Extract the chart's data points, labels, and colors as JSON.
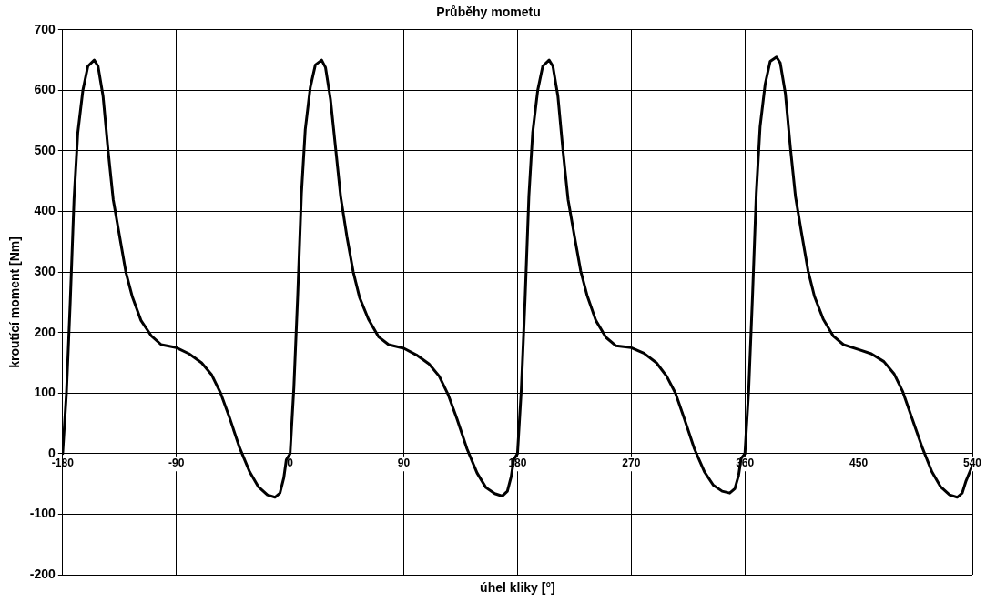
{
  "chart_data": {
    "type": "line",
    "title": "Průběhy mometu",
    "xlabel": "úhel kliky [°]",
    "ylabel": "kroutící moment [Nm]",
    "xlim": [
      -180,
      540
    ],
    "xticks": [
      -180,
      -90,
      0,
      90,
      180,
      270,
      360,
      450,
      540
    ],
    "ylim": [
      -200,
      700
    ],
    "yticks": [
      -200,
      -100,
      0,
      100,
      200,
      300,
      400,
      500,
      600,
      700
    ],
    "grid": true,
    "legend": false,
    "marker": "none",
    "line_style": "solid",
    "x": [
      -180,
      -177,
      -174,
      -171,
      -168,
      -164,
      -160,
      -155,
      -152,
      -148,
      -144,
      -140,
      -135,
      -130,
      -125,
      -118,
      -110,
      -102,
      -90,
      -80,
      -70,
      -62,
      -55,
      -48,
      -40,
      -32,
      -25,
      -18,
      -12,
      -8,
      -5,
      -3,
      0,
      3,
      6,
      9,
      12,
      16,
      20,
      25,
      28,
      32,
      36,
      40,
      45,
      50,
      55,
      62,
      70,
      78,
      90,
      100,
      110,
      118,
      125,
      132,
      140,
      148,
      155,
      162,
      168,
      172,
      175,
      177,
      180,
      183,
      186,
      189,
      192,
      196,
      200,
      205,
      208,
      212,
      216,
      220,
      225,
      230,
      235,
      242,
      250,
      258,
      270,
      280,
      290,
      298,
      305,
      312,
      320,
      328,
      335,
      342,
      348,
      352,
      355,
      357,
      360,
      363,
      366,
      369,
      372,
      376,
      380,
      385,
      388,
      392,
      396,
      400,
      405,
      410,
      415,
      422,
      430,
      438,
      450,
      460,
      470,
      478,
      485,
      492,
      500,
      508,
      515,
      522,
      528,
      532,
      535,
      540
    ],
    "series": [
      {
        "color": "#000000",
        "values": [
          0,
          100,
          250,
          420,
          530,
          600,
          640,
          650,
          640,
          590,
          500,
          420,
          360,
          300,
          260,
          220,
          195,
          180,
          175,
          165,
          150,
          130,
          100,
          60,
          10,
          -30,
          -55,
          -68,
          -72,
          -65,
          -40,
          -10,
          0,
          110,
          260,
          430,
          535,
          605,
          642,
          650,
          638,
          585,
          505,
          425,
          358,
          300,
          258,
          222,
          193,
          180,
          174,
          163,
          148,
          128,
          98,
          58,
          8,
          -32,
          -56,
          -66,
          -70,
          -62,
          -38,
          -10,
          0,
          105,
          255,
          425,
          530,
          600,
          640,
          650,
          640,
          590,
          500,
          420,
          360,
          302,
          262,
          220,
          192,
          178,
          175,
          166,
          150,
          128,
          100,
          58,
          8,
          -30,
          -52,
          -62,
          -65,
          -58,
          -36,
          -8,
          0,
          105,
          260,
          430,
          540,
          610,
          648,
          655,
          645,
          595,
          505,
          425,
          362,
          302,
          260,
          222,
          194,
          180,
          172,
          165,
          152,
          132,
          102,
          60,
          12,
          -30,
          -55,
          -68,
          -72,
          -65,
          -45,
          -20
        ]
      }
    ]
  }
}
